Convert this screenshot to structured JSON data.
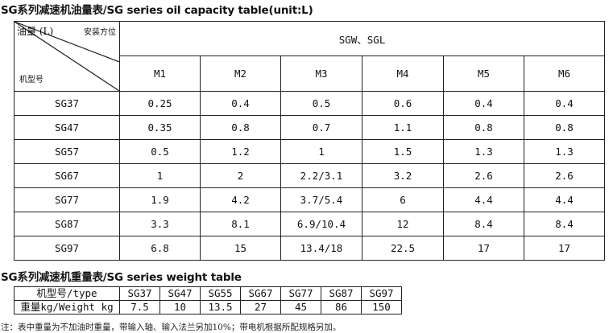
{
  "oil_table": {
    "title": "SG系列减速机油量表/SG series oil capacity table(unit:L)",
    "corner": {
      "oil_label": "油量 (L)",
      "mount_label": "安装方位",
      "model_label": "机型号"
    },
    "group_header": "SGW、SGL",
    "positions": [
      "M1",
      "M2",
      "M3",
      "M4",
      "M5",
      "M6"
    ],
    "rows": [
      {
        "model": "SG37",
        "values": [
          "0.25",
          "0.4",
          "0.5",
          "0.6",
          "0.4",
          "0.4"
        ]
      },
      {
        "model": "SG47",
        "values": [
          "0.35",
          "0.8",
          "0.7",
          "1.1",
          "0.8",
          "0.8"
        ]
      },
      {
        "model": "SG57",
        "values": [
          "0.5",
          "1.2",
          "1",
          "1.5",
          "1.3",
          "1.3"
        ]
      },
      {
        "model": "SG67",
        "values": [
          "1",
          "2",
          "2.2/3.1",
          "3.2",
          "2.6",
          "2.6"
        ]
      },
      {
        "model": "SG77",
        "values": [
          "1.9",
          "4.2",
          "3.7/5.4",
          "6",
          "4.4",
          "4.4"
        ]
      },
      {
        "model": "SG87",
        "values": [
          "3.3",
          "8.1",
          "6.9/10.4",
          "12",
          "8.4",
          "8.4"
        ]
      },
      {
        "model": "SG97",
        "values": [
          "6.8",
          "15",
          "13.4/18",
          "22.5",
          "17",
          "17"
        ]
      }
    ]
  },
  "weight_table": {
    "title": "SG系列减速机重量表/SG series weight table",
    "type_label": "机型号/type",
    "weight_label": "重量kg/Weight kg",
    "types": [
      "SG37",
      "SG47",
      "SG55",
      "SG67",
      "SG77",
      "SG87",
      "SG97"
    ],
    "weights": [
      "7.5",
      "10",
      "13.5",
      "27",
      "45",
      "86",
      "150"
    ]
  },
  "note": "注：表中重量为不加油时重量，带输入轴、输入法兰另加10%；带电机根据所配规格另加。"
}
